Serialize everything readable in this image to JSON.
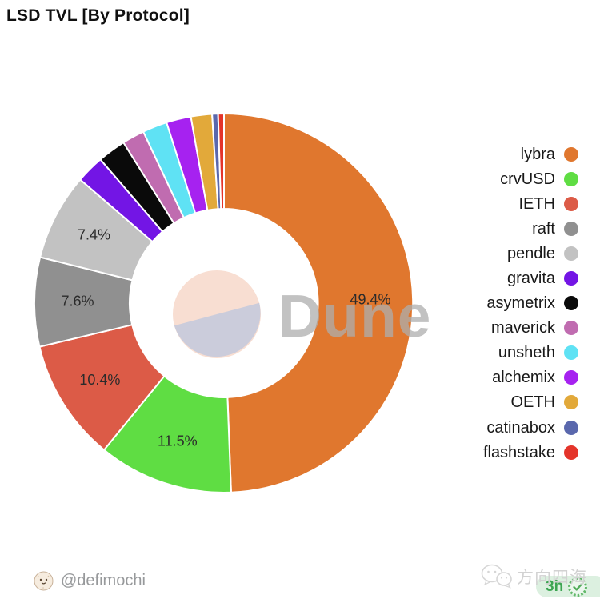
{
  "title": "LSD TVL [By Protocol]",
  "watermark": {
    "brand": "Dune",
    "text_color": "rgba(173,173,173,0.75)",
    "logo_top_color": "#f8ded2",
    "logo_bottom_color": "#cbccdb"
  },
  "chart_data": {
    "type": "pie",
    "subtype": "donut",
    "title": "LSD TVL [By Protocol]",
    "direction": "clockwise",
    "start_angle_deg": 0,
    "legend_position": "right",
    "slice_gap_color": "#ffffff",
    "series": [
      {
        "name": "lybra",
        "value": 49.4,
        "color": "#e0772e",
        "label": "49.4%"
      },
      {
        "name": "crvUSD",
        "value": 11.5,
        "color": "#5fdd43",
        "label": "11.5%"
      },
      {
        "name": "IETH",
        "value": 10.4,
        "color": "#dc5b47",
        "label": "10.4%"
      },
      {
        "name": "raft",
        "value": 7.6,
        "color": "#909090",
        "label": "7.6%"
      },
      {
        "name": "pendle",
        "value": 7.4,
        "color": "#c2c2c2",
        "label": "7.4%"
      },
      {
        "name": "gravita",
        "value": 2.4,
        "color": "#7315e5",
        "label": ""
      },
      {
        "name": "asymetrix",
        "value": 2.4,
        "color": "#0a0a0a",
        "label": ""
      },
      {
        "name": "maverick",
        "value": 1.9,
        "color": "#c06cb0",
        "label": ""
      },
      {
        "name": "unsheth",
        "value": 2.1,
        "color": "#5fe2f4",
        "label": ""
      },
      {
        "name": "alchemix",
        "value": 2.1,
        "color": "#a622f0",
        "label": ""
      },
      {
        "name": "OETH",
        "value": 1.8,
        "color": "#e2a93a",
        "label": ""
      },
      {
        "name": "catinabox",
        "value": 0.5,
        "color": "#5a68ad",
        "label": ""
      },
      {
        "name": "flashstake",
        "value": 0.5,
        "color": "#e4342a",
        "label": ""
      }
    ]
  },
  "footer": {
    "author_handle": "@defimochi",
    "channel_watermark": "方向四海",
    "badge_time": "3h"
  }
}
